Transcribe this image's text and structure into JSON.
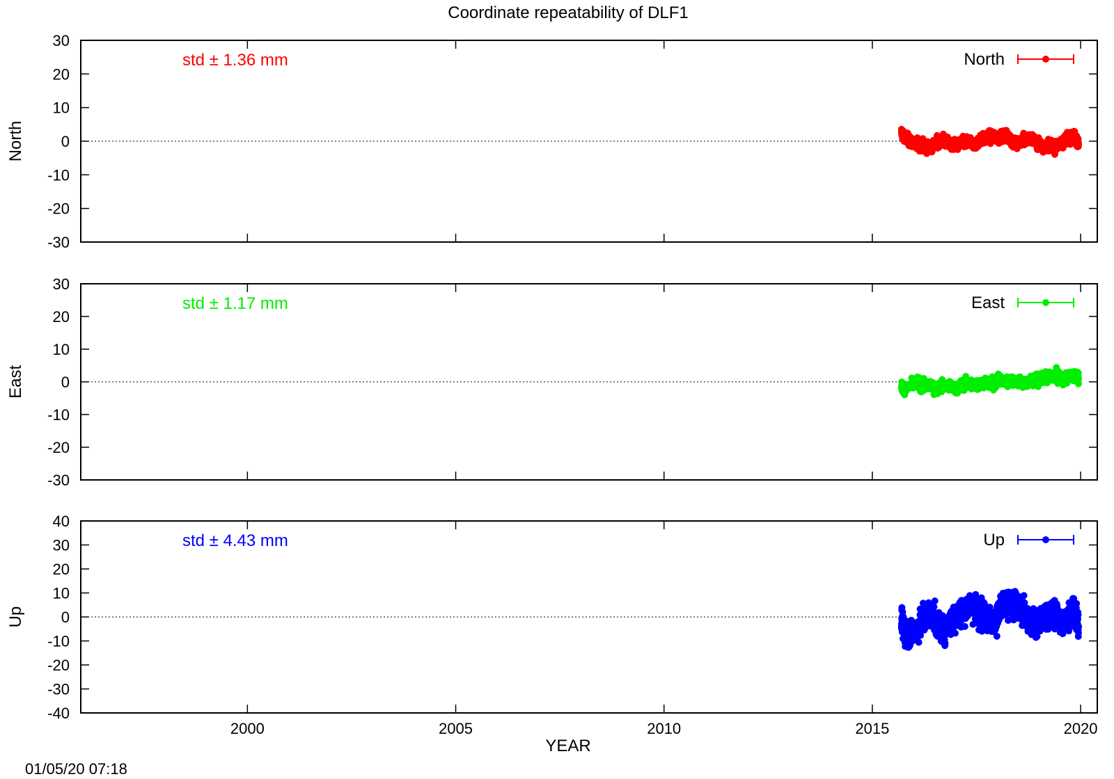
{
  "title": "Coordinate repeatability of DLF1",
  "timestamp": "01/05/20 07:18",
  "xlabel": "YEAR",
  "x_ticks": [
    "2000",
    "2005",
    "2010",
    "2015",
    "2020"
  ],
  "chart_data": [
    {
      "type": "scatter",
      "ylabel": "North",
      "legend": "North",
      "legend_position": "top-right",
      "std_label": "std ± 1.36 mm",
      "color": "#ff0000",
      "xlim": [
        1996,
        2020.4
      ],
      "ylim": [
        -30,
        30
      ],
      "y_ticks": [
        "30",
        "20",
        "10",
        "0",
        "-10",
        "-20",
        "-30"
      ],
      "zero_line": true,
      "series": [
        {
          "name": "North",
          "x": [
            2015.7,
            2015.8,
            2015.95,
            2016.1,
            2016.25,
            2016.4,
            2016.55,
            2016.7,
            2016.85,
            2017.0,
            2017.15,
            2017.3,
            2017.45,
            2017.6,
            2017.75,
            2017.9,
            2018.05,
            2018.2,
            2018.35,
            2018.5,
            2018.65,
            2018.8,
            2018.95,
            2019.1,
            2019.25,
            2019.4,
            2019.55,
            2019.7,
            2019.85,
            2019.95
          ],
          "y": [
            2.5,
            1.0,
            -0.5,
            -1.0,
            -1.5,
            -2.0,
            -0.5,
            0.5,
            -1.0,
            -1.5,
            -0.5,
            0.0,
            -1.0,
            0.5,
            1.0,
            1.5,
            1.0,
            2.0,
            0.0,
            -0.5,
            0.5,
            1.0,
            -0.5,
            -1.5,
            -1.0,
            -1.5,
            -0.5,
            1.0,
            1.5,
            -1.0
          ]
        }
      ]
    },
    {
      "type": "scatter",
      "ylabel": "East",
      "legend": "East",
      "legend_position": "top-right",
      "std_label": "std ± 1.17 mm",
      "color": "#00ee00",
      "xlim": [
        1996,
        2020.4
      ],
      "ylim": [
        -30,
        30
      ],
      "y_ticks": [
        "30",
        "20",
        "10",
        "0",
        "-10",
        "-20",
        "-30"
      ],
      "zero_line": true,
      "series": [
        {
          "name": "East",
          "x": [
            2015.7,
            2015.8,
            2015.95,
            2016.1,
            2016.25,
            2016.4,
            2016.55,
            2016.7,
            2016.85,
            2017.0,
            2017.15,
            2017.3,
            2017.45,
            2017.6,
            2017.75,
            2017.9,
            2018.05,
            2018.2,
            2018.35,
            2018.5,
            2018.65,
            2018.8,
            2018.95,
            2019.1,
            2019.25,
            2019.4,
            2019.55,
            2019.7,
            2019.85,
            2019.95
          ],
          "y": [
            -1.5,
            -2.0,
            -1.0,
            -0.5,
            -1.5,
            -1.0,
            -2.0,
            -1.0,
            -1.5,
            -2.0,
            -1.0,
            -0.5,
            -1.0,
            -0.5,
            0.0,
            -0.5,
            0.5,
            0.0,
            0.5,
            0.0,
            -0.5,
            0.0,
            0.5,
            1.0,
            1.5,
            2.0,
            1.0,
            1.5,
            2.0,
            1.0
          ]
        }
      ]
    },
    {
      "type": "scatter",
      "ylabel": "Up",
      "legend": "Up",
      "legend_position": "top-right",
      "std_label": "std ± 4.43 mm",
      "color": "#0000ff",
      "xlim": [
        1996,
        2020.4
      ],
      "ylim": [
        -40,
        40
      ],
      "y_ticks": [
        "40",
        "30",
        "20",
        "10",
        "0",
        "-10",
        "-20",
        "-30",
        "-40"
      ],
      "zero_line": true,
      "series": [
        {
          "name": "Up",
          "x": [
            2015.7,
            2015.8,
            2015.95,
            2016.1,
            2016.25,
            2016.4,
            2016.55,
            2016.7,
            2016.85,
            2017.0,
            2017.15,
            2017.3,
            2017.45,
            2017.6,
            2017.75,
            2017.9,
            2018.05,
            2018.2,
            2018.35,
            2018.5,
            2018.65,
            2018.8,
            2018.95,
            2019.1,
            2019.25,
            2019.4,
            2019.55,
            2019.7,
            2019.85,
            2019.95
          ],
          "y": [
            -3.0,
            -6.0,
            -8.0,
            -4.0,
            0.0,
            2.0,
            -3.0,
            -5.0,
            -2.0,
            0.0,
            2.0,
            5.0,
            4.0,
            1.0,
            0.0,
            -3.0,
            2.0,
            5.0,
            6.0,
            3.0,
            1.0,
            -2.0,
            -4.0,
            0.0,
            2.0,
            1.0,
            -3.0,
            0.0,
            3.0,
            -4.0
          ]
        }
      ]
    }
  ]
}
